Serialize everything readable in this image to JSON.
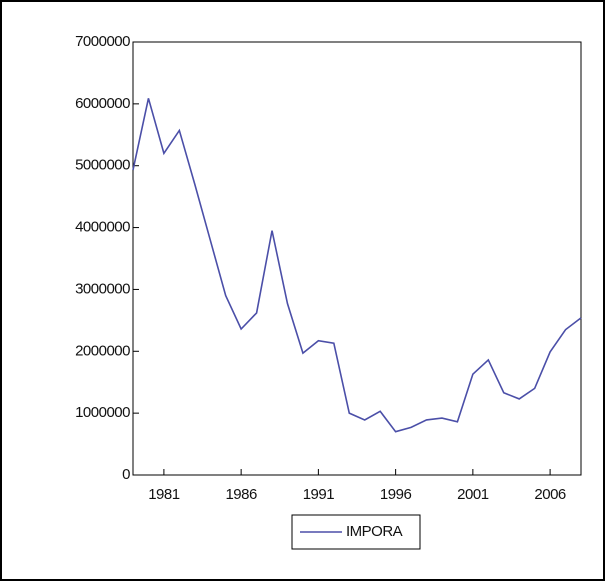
{
  "chart_data": {
    "type": "line",
    "x": [
      1979,
      1980,
      1981,
      1982,
      1983,
      1984,
      1985,
      1986,
      1987,
      1988,
      1989,
      1990,
      1991,
      1992,
      1993,
      1994,
      1995,
      1996,
      1997,
      1998,
      1999,
      2000,
      2001,
      2002,
      2003,
      2004,
      2005,
      2006,
      2007,
      2008
    ],
    "series": [
      {
        "name": "IMPORA",
        "color": "#4b4fa8",
        "values": [
          4930000,
          6090000,
          5200000,
          5570000,
          4700000,
          3800000,
          2900000,
          2360000,
          2620000,
          3950000,
          2770000,
          1970000,
          2170000,
          2130000,
          1000000,
          890000,
          1030000,
          700000,
          770000,
          890000,
          920000,
          860000,
          1630000,
          1860000,
          1330000,
          1230000,
          1400000,
          1990000,
          2350000,
          2540000
        ]
      }
    ],
    "xlim": [
      1979,
      2008
    ],
    "xticks": [
      1981,
      1986,
      1991,
      1996,
      2001,
      2006
    ],
    "ylim": [
      0,
      7000000
    ],
    "yticks": [
      0,
      1000000,
      2000000,
      3000000,
      4000000,
      5000000,
      6000000,
      7000000
    ],
    "legend": "bottom"
  }
}
